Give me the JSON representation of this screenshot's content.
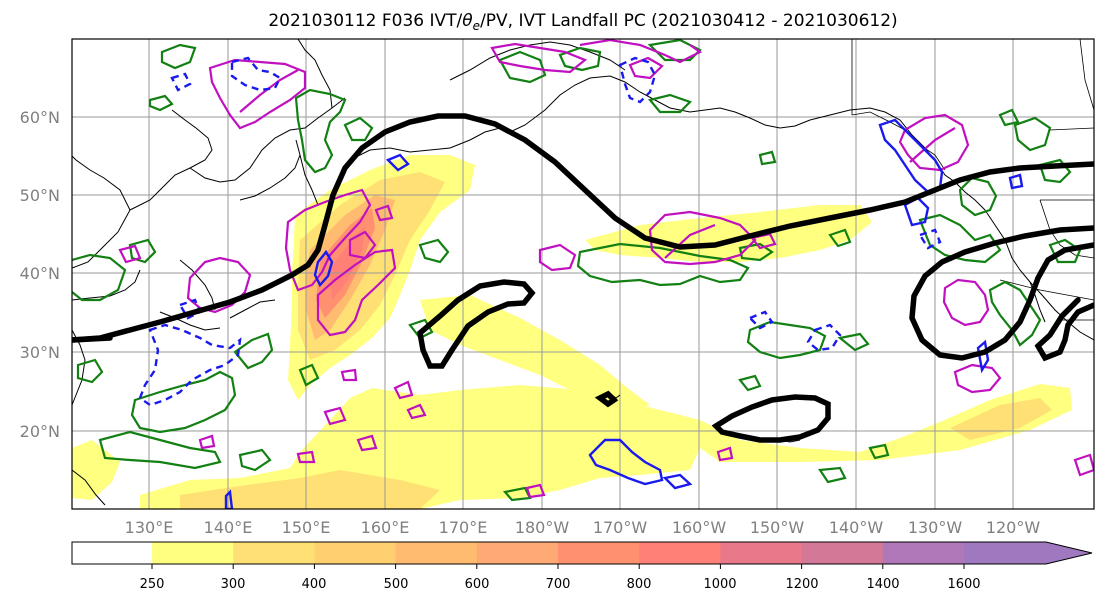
{
  "title": "2021030112 F036 IVT/θe/PV, IVT Landfall PC (2021030412 - 2021030612)",
  "title_prefix": "2021030112 F036 IVT/",
  "title_theta": "θ",
  "title_sub": "e",
  "title_suffix": "/PV, IVT Landfall PC (2021030412 - 2021030612)",
  "lat_labels": [
    "60°N",
    "50°N",
    "40°N",
    "30°N",
    "20°N"
  ],
  "lon_labels": [
    "130°E",
    "140°E",
    "150°E",
    "160°E",
    "170°E",
    "180°W",
    "170°W",
    "160°W",
    "150°W",
    "140°W",
    "130°W",
    "120°W"
  ],
  "colorbar": {
    "ticks": [
      "250",
      "300",
      "400",
      "500",
      "600",
      "700",
      "800",
      "1000",
      "1200",
      "1400",
      "1600"
    ],
    "colors": [
      "#ffff80",
      "#ffe074",
      "#ffd070",
      "#ffbc70",
      "#ffaa74",
      "#ff9070",
      "#ff8076",
      "#e8788a",
      "#d47898",
      "#b078b8",
      "#a078c0"
    ]
  },
  "legend_colors": {
    "ivt_low": "#ffff80",
    "ivt_mid": "#ffbc70",
    "ivt_high": "#ff8076",
    "pv": "#c010c0",
    "theta_e_green": "#138013",
    "blue": "#1a1aee",
    "landfall_pc": "#000000"
  }
}
